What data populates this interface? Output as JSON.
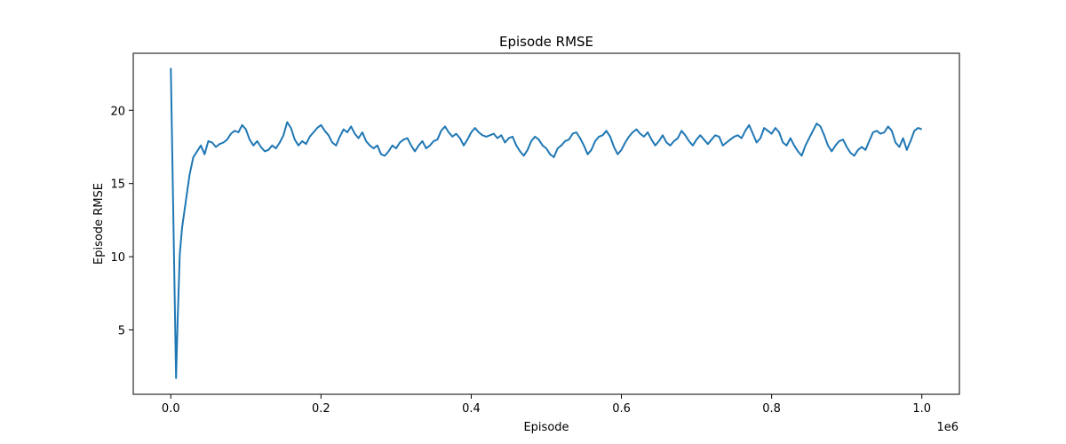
{
  "chart_data": {
    "type": "line",
    "title": "Episode RMSE",
    "xlabel": "Episode",
    "ylabel": "Episode RMSE",
    "x_offset_label": "1e6",
    "xlim": [
      -0.05,
      1.05
    ],
    "ylim": [
      0.6,
      23.9
    ],
    "x_ticks": [
      0.0,
      0.2,
      0.4,
      0.6,
      0.8,
      1.0
    ],
    "x_tick_labels": [
      "0.0",
      "0.2",
      "0.4",
      "0.6",
      "0.8",
      "1.0"
    ],
    "y_ticks": [
      5,
      10,
      15,
      20
    ],
    "y_tick_labels": [
      "5",
      "10",
      "15",
      "20"
    ],
    "grid": false,
    "series": [
      {
        "color": "#1f77b4",
        "x": [
          0.0,
          0.007,
          0.009,
          0.012,
          0.015,
          0.02,
          0.025,
          0.03,
          0.035,
          0.04,
          0.045,
          0.05,
          0.055,
          0.06,
          0.065,
          0.07,
          0.075,
          0.08,
          0.085,
          0.09,
          0.095,
          0.1,
          0.105,
          0.11,
          0.115,
          0.12,
          0.125,
          0.13,
          0.135,
          0.14,
          0.145,
          0.15,
          0.155,
          0.16,
          0.165,
          0.17,
          0.175,
          0.18,
          0.185,
          0.19,
          0.195,
          0.2,
          0.205,
          0.21,
          0.215,
          0.22,
          0.225,
          0.23,
          0.235,
          0.24,
          0.245,
          0.25,
          0.255,
          0.26,
          0.265,
          0.27,
          0.275,
          0.28,
          0.285,
          0.29,
          0.295,
          0.3,
          0.305,
          0.31,
          0.315,
          0.32,
          0.325,
          0.33,
          0.335,
          0.34,
          0.345,
          0.35,
          0.355,
          0.36,
          0.365,
          0.37,
          0.375,
          0.38,
          0.385,
          0.39,
          0.395,
          0.4,
          0.405,
          0.41,
          0.415,
          0.42,
          0.425,
          0.43,
          0.435,
          0.44,
          0.445,
          0.45,
          0.455,
          0.46,
          0.465,
          0.47,
          0.475,
          0.48,
          0.485,
          0.49,
          0.495,
          0.5,
          0.505,
          0.51,
          0.515,
          0.52,
          0.525,
          0.53,
          0.535,
          0.54,
          0.545,
          0.55,
          0.555,
          0.56,
          0.565,
          0.57,
          0.575,
          0.58,
          0.585,
          0.59,
          0.595,
          0.6,
          0.605,
          0.61,
          0.615,
          0.62,
          0.625,
          0.63,
          0.635,
          0.64,
          0.645,
          0.65,
          0.655,
          0.66,
          0.665,
          0.67,
          0.675,
          0.68,
          0.685,
          0.69,
          0.695,
          0.7,
          0.705,
          0.71,
          0.715,
          0.72,
          0.725,
          0.73,
          0.735,
          0.74,
          0.745,
          0.75,
          0.755,
          0.76,
          0.765,
          0.77,
          0.775,
          0.78,
          0.785,
          0.79,
          0.795,
          0.8,
          0.805,
          0.81,
          0.815,
          0.82,
          0.825,
          0.83,
          0.835,
          0.84,
          0.845,
          0.85,
          0.855,
          0.86,
          0.865,
          0.87,
          0.875,
          0.88,
          0.885,
          0.89,
          0.895,
          0.9,
          0.905,
          0.91,
          0.915,
          0.92,
          0.925,
          0.93,
          0.935,
          0.94,
          0.945,
          0.95,
          0.955,
          0.96,
          0.965,
          0.97,
          0.975,
          0.98,
          0.985,
          0.99,
          0.995,
          1.0
        ],
        "y": [
          22.9,
          1.7,
          5.5,
          10.2,
          12.0,
          13.8,
          15.6,
          16.8,
          17.2,
          17.6,
          17.0,
          17.9,
          17.8,
          17.5,
          17.7,
          17.8,
          18.0,
          18.4,
          18.6,
          18.5,
          19.0,
          18.7,
          18.0,
          17.6,
          17.9,
          17.5,
          17.2,
          17.3,
          17.6,
          17.4,
          17.8,
          18.3,
          19.2,
          18.8,
          18.0,
          17.6,
          17.9,
          17.7,
          18.2,
          18.5,
          18.8,
          19.0,
          18.6,
          18.3,
          17.8,
          17.6,
          18.2,
          18.7,
          18.5,
          18.9,
          18.4,
          18.1,
          18.5,
          17.9,
          17.6,
          17.4,
          17.6,
          17.0,
          16.9,
          17.2,
          17.6,
          17.4,
          17.8,
          18.0,
          18.1,
          17.6,
          17.2,
          17.6,
          17.9,
          17.4,
          17.6,
          17.9,
          18.0,
          18.6,
          18.9,
          18.5,
          18.2,
          18.4,
          18.1,
          17.6,
          18.0,
          18.5,
          18.8,
          18.5,
          18.3,
          18.2,
          18.3,
          18.4,
          18.1,
          18.3,
          17.8,
          18.1,
          18.2,
          17.6,
          17.2,
          16.9,
          17.3,
          17.9,
          18.2,
          18.0,
          17.6,
          17.4,
          17.0,
          16.8,
          17.4,
          17.6,
          17.9,
          18.0,
          18.4,
          18.5,
          18.1,
          17.6,
          17.0,
          17.3,
          17.9,
          18.2,
          18.3,
          18.6,
          18.2,
          17.5,
          17.0,
          17.3,
          17.8,
          18.2,
          18.5,
          18.7,
          18.4,
          18.2,
          18.5,
          18.0,
          17.6,
          17.9,
          18.3,
          17.8,
          17.6,
          17.9,
          18.1,
          18.6,
          18.3,
          17.9,
          17.6,
          18.0,
          18.3,
          18.0,
          17.7,
          18.0,
          18.3,
          18.2,
          17.6,
          17.8,
          18.0,
          18.2,
          18.3,
          18.1,
          18.6,
          19.0,
          18.4,
          17.8,
          18.1,
          18.8,
          18.6,
          18.4,
          18.8,
          18.5,
          17.8,
          17.6,
          18.1,
          17.6,
          17.2,
          16.9,
          17.6,
          18.1,
          18.6,
          19.1,
          18.9,
          18.3,
          17.6,
          17.2,
          17.6,
          17.9,
          18.0,
          17.5,
          17.1,
          16.9,
          17.3,
          17.5,
          17.3,
          17.9,
          18.5,
          18.6,
          18.4,
          18.5,
          18.9,
          18.6,
          17.8,
          17.5,
          18.1,
          17.3,
          17.9,
          18.6,
          18.8,
          18.7
        ]
      }
    ]
  }
}
